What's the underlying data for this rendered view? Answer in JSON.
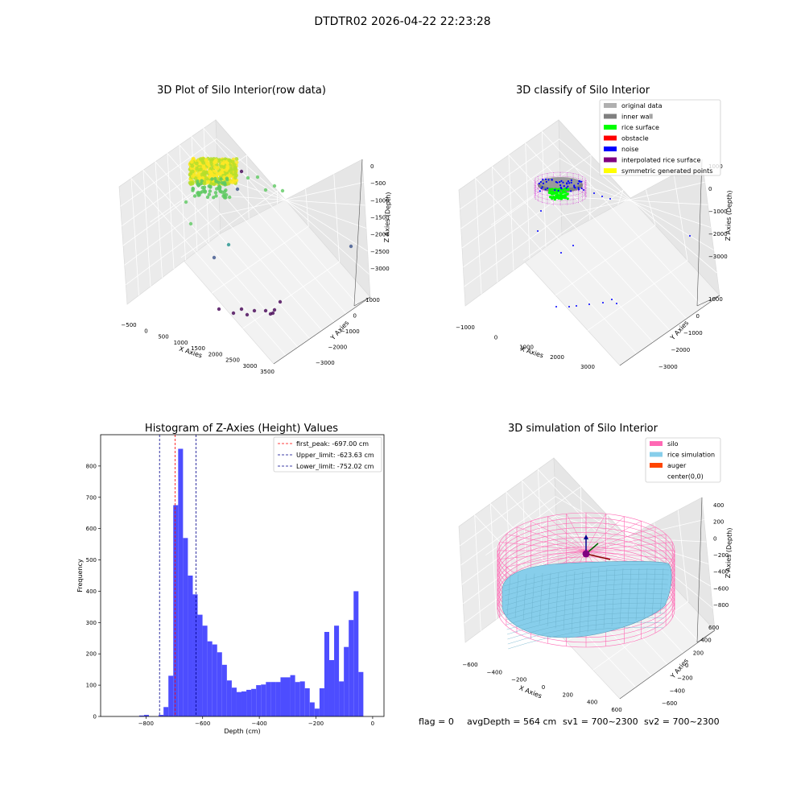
{
  "figure": {
    "suptitle": "DTDTR02 2026-04-22 22:23:28",
    "footer": {
      "flag": "flag = 0",
      "avg_depth": "avgDepth = 564 cm",
      "sv1": "sv1 = 700~2300",
      "sv2": "sv2 = 700~2300"
    }
  },
  "chart_data": [
    {
      "type": "scatter",
      "projection": "3d",
      "title": "3D Plot of Silo Interior(row data)",
      "xlabel": "X Axies",
      "ylabel": "Y Axies",
      "zlabel": "Z Axies (Depth)",
      "x_ticks": [
        "−500",
        "0",
        "500",
        "1000",
        "1500",
        "2000",
        "2500",
        "3000",
        "3500"
      ],
      "y_ticks": [
        "1000",
        "0",
        "−1000",
        "−2000",
        "−3000"
      ],
      "z_ticks": [
        "0",
        "−500",
        "−1000",
        "−1500",
        "−2000",
        "−2500",
        "−3000"
      ],
      "xlim": [
        -700,
        3600
      ],
      "ylim": [
        -3200,
        1800
      ],
      "zlim": [
        -3200,
        300
      ],
      "colormap": [
        "#440154",
        "#3b528b",
        "#21918c",
        "#5ec962",
        "#fde725"
      ],
      "surface_cluster": {
        "x_range": [
          -400,
          600
        ],
        "y_range": [
          -500,
          600
        ],
        "z_range": [
          -900,
          0
        ]
      },
      "points": [
        {
          "x": 700,
          "y": 0,
          "z": -700
        },
        {
          "x": 1000,
          "y": 100,
          "z": -600
        },
        {
          "x": 1300,
          "y": 300,
          "z": -800
        },
        {
          "x": 1800,
          "y": 600,
          "z": -900
        },
        {
          "x": 2000,
          "y": 900,
          "z": -1000
        },
        {
          "x": 400,
          "y": -100,
          "z": -800
        },
        {
          "x": 200,
          "y": -200,
          "z": -1000
        },
        {
          "x": 0,
          "y": -400,
          "z": -1500
        },
        {
          "x": 500,
          "y": -900,
          "z": -2200
        },
        {
          "x": 900,
          "y": -1300,
          "z": -2000
        },
        {
          "x": 3400,
          "y": 1500,
          "z": -2300
        },
        {
          "x": 1500,
          "y": -2200,
          "z": -3000
        },
        {
          "x": 1800,
          "y": -2300,
          "z": -3000
        },
        {
          "x": 2000,
          "y": -2300,
          "z": -3000
        },
        {
          "x": 2100,
          "y": -2400,
          "z": -3000
        },
        {
          "x": 2400,
          "y": -2500,
          "z": -3000
        },
        {
          "x": 2700,
          "y": -2500,
          "z": -3000
        },
        {
          "x": 2900,
          "y": -2700,
          "z": -3000
        },
        {
          "x": 3000,
          "y": -2700,
          "z": -3000
        },
        {
          "x": 3100,
          "y": -2500,
          "z": -2900
        },
        {
          "x": 1700,
          "y": -2300,
          "z": -3000
        },
        {
          "x": 3000,
          "y": -2600,
          "z": -3000
        }
      ]
    },
    {
      "type": "scatter",
      "projection": "3d",
      "title": "3D classify of Silo Interior",
      "xlabel": "X Axies",
      "ylabel": "Y Axies",
      "zlabel": "Z Axies (Depth)",
      "x_ticks": [
        "−1000",
        "0",
        "1000",
        "2000",
        "3000"
      ],
      "y_ticks": [
        "1000",
        "0",
        "−1000",
        "−2000",
        "−3000"
      ],
      "z_ticks": [
        "1000",
        "0",
        "−1000",
        "−2000",
        "−3000"
      ],
      "xlim": [
        -1200,
        3600
      ],
      "ylim": [
        -3200,
        1800
      ],
      "zlim": [
        -3400,
        1400
      ],
      "legend": {
        "placement": "top-right",
        "entries": [
          {
            "label": "original data",
            "color": "#b0b0b0"
          },
          {
            "label": "inner wall",
            "color": "#808080"
          },
          {
            "label": "rice surface",
            "color": "#00ff00"
          },
          {
            "label": "obstacle",
            "color": "#ff0000"
          },
          {
            "label": "noise",
            "color": "#0000ff"
          },
          {
            "label": "interpolated rice surface",
            "color": "#800080"
          },
          {
            "label": "symmetric generated points",
            "color": "#ffff00"
          }
        ]
      },
      "noise_points": [
        {
          "x": 1200,
          "y": 200,
          "z": -200
        },
        {
          "x": 1500,
          "y": 400,
          "z": -300
        },
        {
          "x": 1800,
          "y": 600,
          "z": -400
        },
        {
          "x": 2100,
          "y": 900,
          "z": -300
        },
        {
          "x": 200,
          "y": -300,
          "z": -900
        },
        {
          "x": -200,
          "y": -500,
          "z": -1400
        },
        {
          "x": 700,
          "y": -800,
          "z": -2000
        },
        {
          "x": 3400,
          "y": 1500,
          "z": -2200
        },
        {
          "x": 900,
          "y": -1100,
          "z": -2600
        },
        {
          "x": 1600,
          "y": -2200,
          "z": -3100
        },
        {
          "x": 1900,
          "y": -2300,
          "z": -3100
        },
        {
          "x": 2100,
          "y": -2300,
          "z": -3100
        },
        {
          "x": 2400,
          "y": -2500,
          "z": -3100
        },
        {
          "x": 2700,
          "y": -2600,
          "z": -3100
        },
        {
          "x": 2900,
          "y": -2700,
          "z": -3100
        },
        {
          "x": 3100,
          "y": -2600,
          "z": -3000
        }
      ]
    },
    {
      "type": "bar",
      "title": "Histogram of Z-Axies (Height) Values",
      "xlabel": "Depth (cm)",
      "ylabel": "Frequency",
      "xlim": [
        -960,
        40
      ],
      "ylim": [
        0,
        900
      ],
      "x_ticks": [
        -800,
        -600,
        -400,
        -200,
        0
      ],
      "y_ticks": [
        0,
        100,
        200,
        300,
        400,
        500,
        600,
        700,
        800
      ],
      "bar_color": "#4d4dff",
      "bin_width": 17.2,
      "bins_start": -824,
      "values": [
        3,
        5,
        0,
        0,
        5,
        30,
        130,
        675,
        855,
        570,
        450,
        390,
        325,
        290,
        240,
        230,
        205,
        165,
        115,
        92,
        78,
        80,
        85,
        88,
        100,
        102,
        110,
        110,
        110,
        125,
        125,
        132,
        110,
        112,
        90,
        45,
        25,
        90,
        270,
        180,
        290,
        112,
        222,
        308,
        400,
        142
      ],
      "vlines": [
        {
          "label": "first_peak: -697.00 cm",
          "value": -697.0,
          "color": "#ff0000"
        },
        {
          "label": "Upper_limit: -623.63 cm",
          "value": -623.63,
          "color": "#00008b"
        },
        {
          "label": "Lower_limit: -752.02 cm",
          "value": -752.02,
          "color": "#00008b"
        }
      ],
      "legend": {
        "placement": "top-right"
      }
    },
    {
      "type": "surface",
      "projection": "3d",
      "title": "3D simulation of Silo Interior",
      "xlabel": "X Axies",
      "ylabel": "Y Axies",
      "zlabel": "Z Axies (Depth)",
      "x_ticks": [
        "−600",
        "−400",
        "−200",
        "0",
        "200",
        "400",
        "600"
      ],
      "y_ticks": [
        "600",
        "400",
        "200",
        "0",
        "−200",
        "−400",
        "−600"
      ],
      "z_ticks": [
        "400",
        "200",
        "0",
        "−200",
        "−400",
        "−600",
        "−800"
      ],
      "xlim": [
        -700,
        700
      ],
      "ylim": [
        -700,
        700
      ],
      "zlim": [
        -900,
        500
      ],
      "silo_radius": 600,
      "silo_z_range": [
        -900,
        100
      ],
      "rice_level": -564,
      "legend": {
        "placement": "top-right",
        "entries": [
          {
            "label": "silo",
            "color": "#ff69b4"
          },
          {
            "label": "rice simulation",
            "color": "#87ceeb"
          },
          {
            "label": "auger",
            "color": "#ff4500"
          },
          {
            "label": "center(0,0)",
            "color": "#ffffff"
          }
        ]
      }
    }
  ]
}
